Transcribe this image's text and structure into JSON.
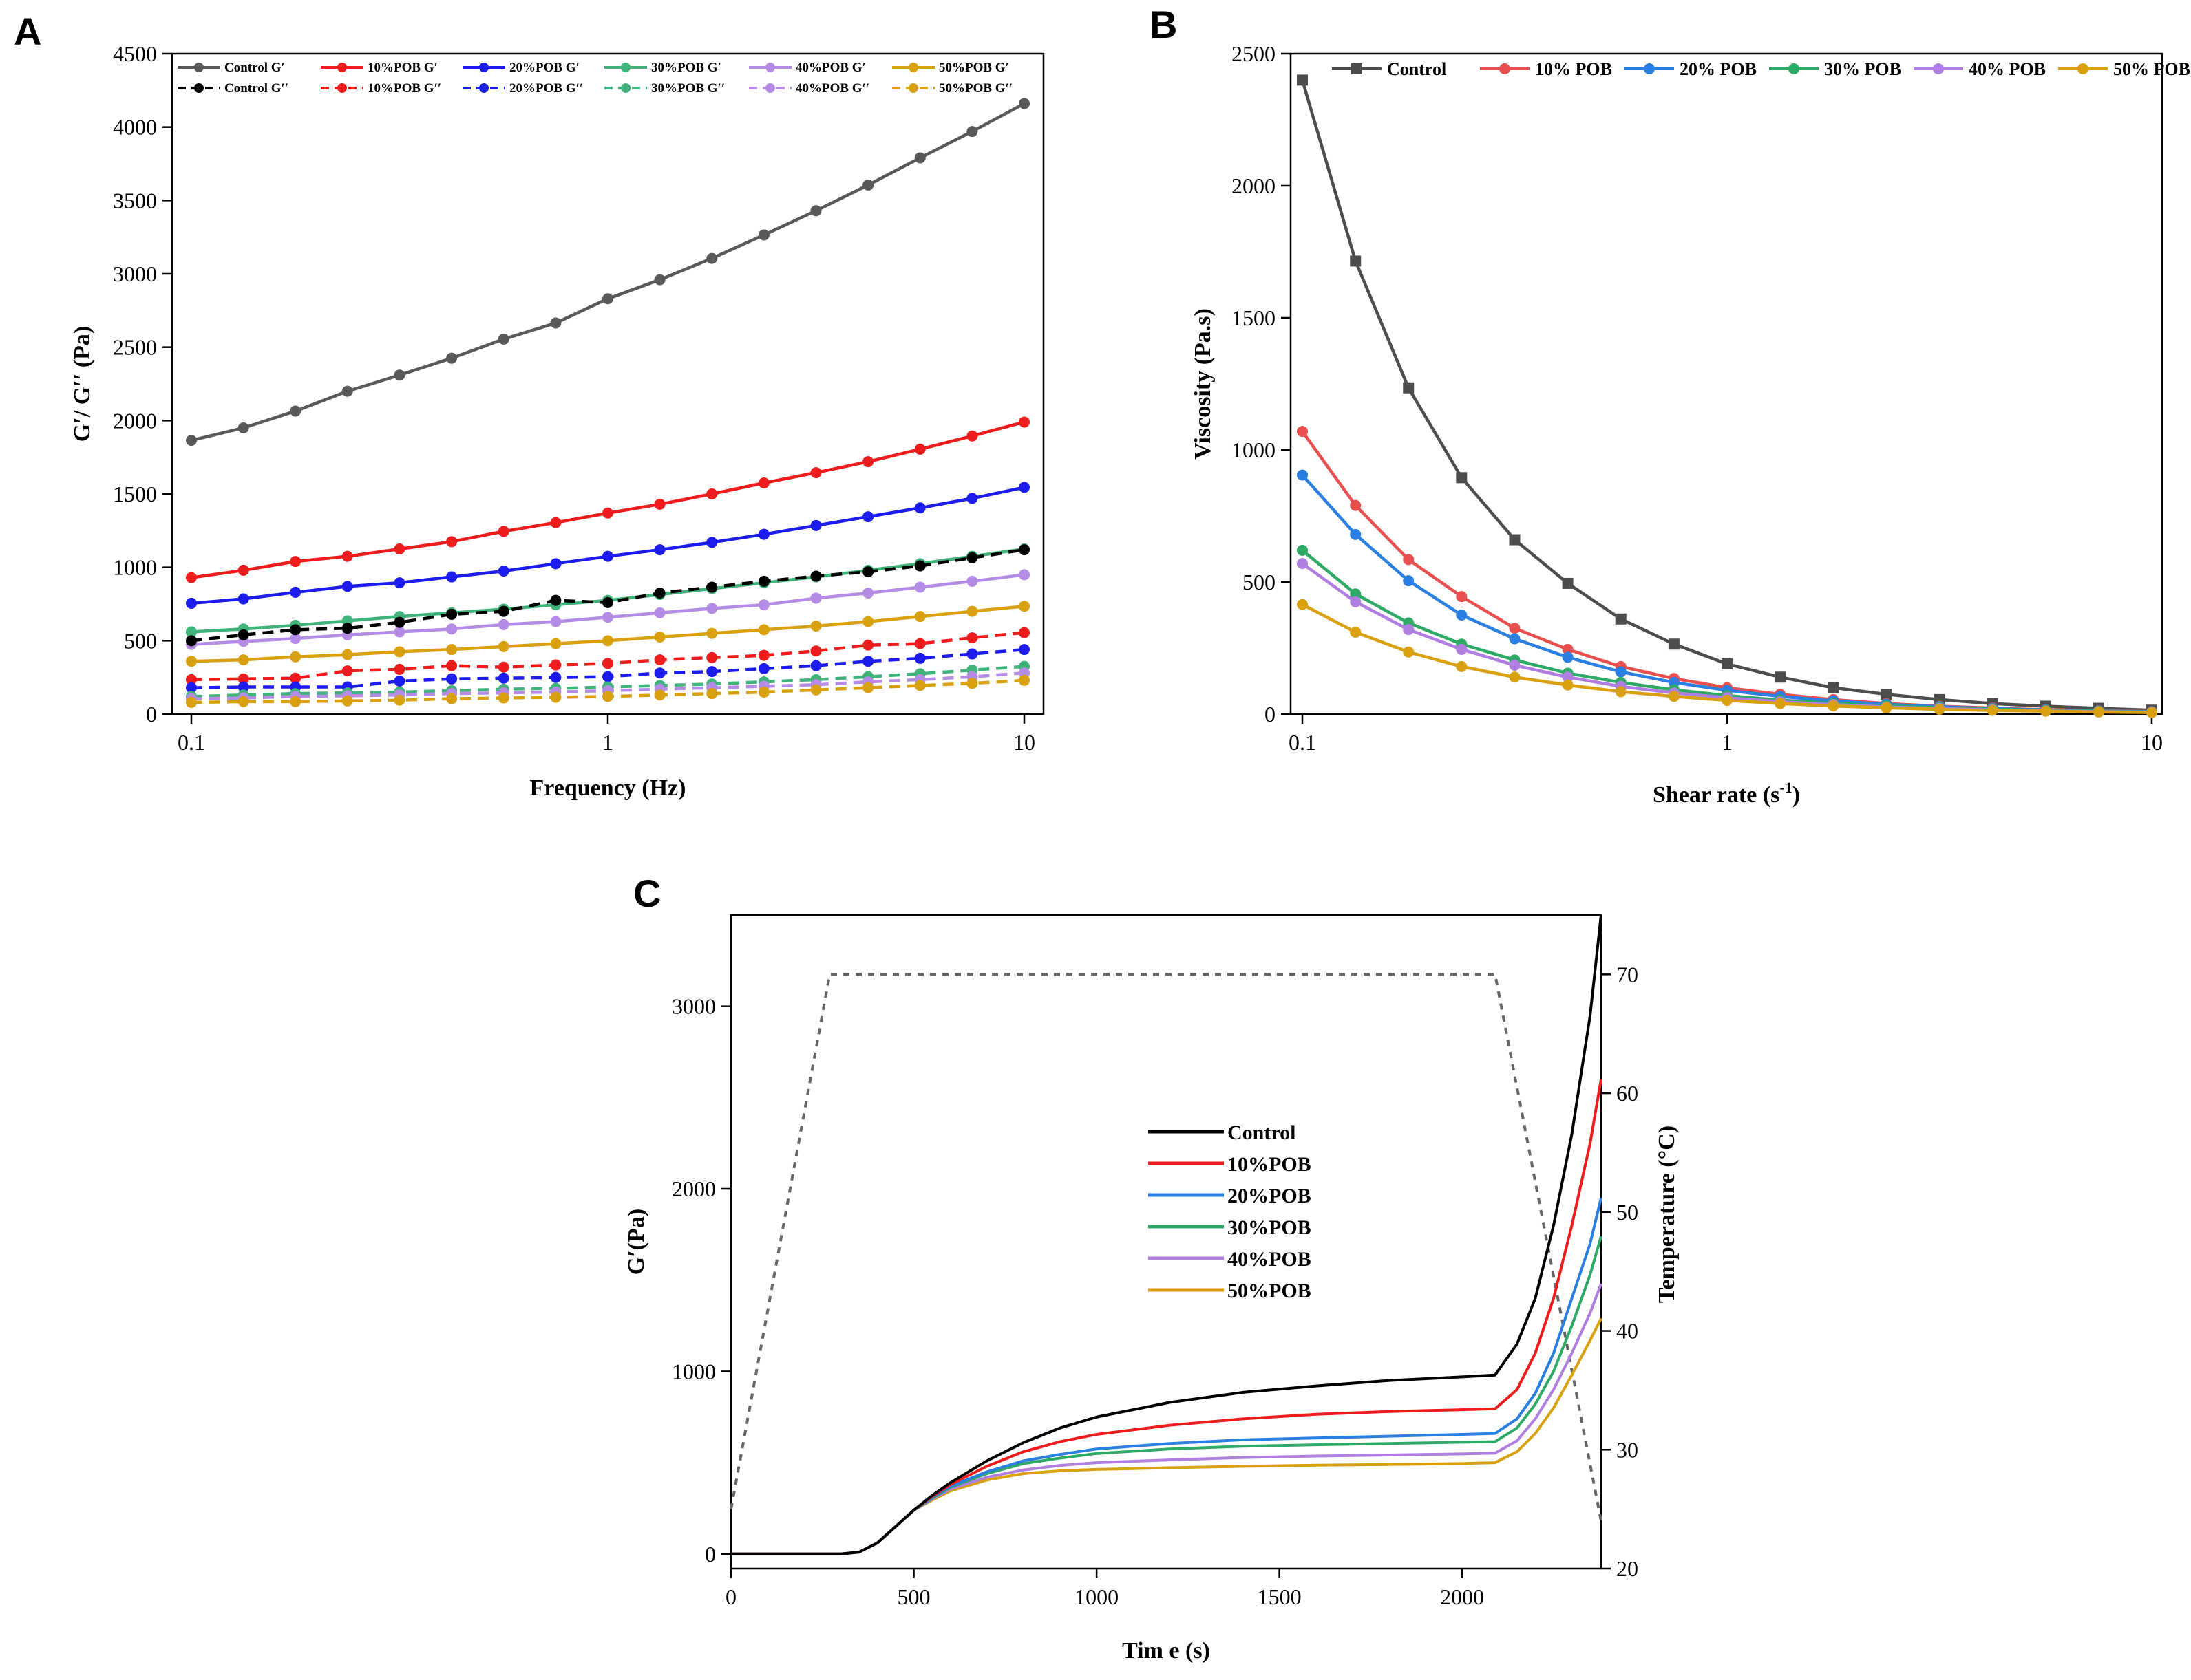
{
  "chart_data": [
    {
      "panel": "A",
      "type": "line",
      "xscale": "log",
      "xlabel": "Frequency (Hz)",
      "ylabel": "G′/ G′′ (Pa)",
      "xlim": [
        0.1,
        10
      ],
      "ylim": [
        0,
        4500
      ],
      "xticks": [
        {
          "value": 0.1,
          "label": "0.1"
        },
        {
          "value": 1,
          "label": "1"
        },
        {
          "value": 10,
          "label": "10"
        }
      ],
      "yticks": [
        {
          "value": 0,
          "label": "0"
        },
        {
          "value": 500,
          "label": "500"
        },
        {
          "value": 1000,
          "label": "1000"
        },
        {
          "value": 1500,
          "label": "1500"
        },
        {
          "value": 2000,
          "label": "2000"
        },
        {
          "value": 2500,
          "label": "2500"
        },
        {
          "value": 3000,
          "label": "3000"
        },
        {
          "value": 3500,
          "label": "3500"
        },
        {
          "value": 4000,
          "label": "4000"
        },
        {
          "value": 4500,
          "label": "4500"
        }
      ],
      "x": [
        0.1,
        0.1334,
        0.1778,
        0.2371,
        0.3162,
        0.4217,
        0.5623,
        0.7499,
        1.0,
        1.3335,
        1.7783,
        2.3714,
        3.1623,
        4.217,
        5.6234,
        7.4989,
        10.0
      ],
      "legend": "top",
      "series": [
        {
          "name": "Control G′",
          "color": "#595959",
          "dash": false,
          "values": [
            1865,
            1950,
            2065,
            2200,
            2310,
            2425,
            2555,
            2665,
            2830,
            2960,
            3105,
            3265,
            3430,
            3605,
            3790,
            3970,
            4160
          ]
        },
        {
          "name": "10%POB G′",
          "color": "#ee1c1c",
          "dash": false,
          "values": [
            930,
            980,
            1040,
            1075,
            1125,
            1175,
            1245,
            1305,
            1370,
            1430,
            1500,
            1575,
            1645,
            1720,
            1805,
            1895,
            1990
          ]
        },
        {
          "name": "20%POB G′",
          "color": "#1c1cee",
          "dash": false,
          "values": [
            755,
            785,
            830,
            870,
            895,
            935,
            975,
            1025,
            1075,
            1120,
            1170,
            1225,
            1285,
            1345,
            1405,
            1470,
            1545
          ]
        },
        {
          "name": "30%POB G′",
          "color": "#3fb37a",
          "dash": false,
          "values": [
            560,
            580,
            605,
            635,
            665,
            690,
            715,
            745,
            775,
            815,
            855,
            895,
            935,
            980,
            1025,
            1075,
            1125
          ]
        },
        {
          "name": "40%POB G′",
          "color": "#b48ce6",
          "dash": false,
          "values": [
            475,
            495,
            515,
            540,
            560,
            580,
            610,
            630,
            660,
            690,
            720,
            745,
            790,
            825,
            865,
            905,
            950
          ]
        },
        {
          "name": "50%POB G′",
          "color": "#d9a010",
          "dash": false,
          "values": [
            360,
            370,
            390,
            405,
            425,
            440,
            460,
            480,
            500,
            525,
            550,
            575,
            600,
            630,
            665,
            700,
            735
          ]
        },
        {
          "name": "Control G′′",
          "color": "#000000",
          "dash": true,
          "values": [
            500,
            540,
            575,
            585,
            625,
            680,
            700,
            775,
            760,
            825,
            865,
            905,
            940,
            970,
            1010,
            1065,
            1120
          ]
        },
        {
          "name": "10%POB G′′",
          "color": "#ee1c1c",
          "dash": true,
          "values": [
            235,
            240,
            245,
            295,
            305,
            330,
            320,
            335,
            345,
            370,
            385,
            400,
            430,
            470,
            480,
            520,
            555
          ]
        },
        {
          "name": "20%POB G′′",
          "color": "#1c1cee",
          "dash": true,
          "values": [
            180,
            185,
            185,
            185,
            225,
            240,
            245,
            250,
            255,
            280,
            290,
            310,
            330,
            360,
            380,
            410,
            440
          ]
        },
        {
          "name": "30%POB G′′",
          "color": "#3fb37a",
          "dash": true,
          "values": [
            120,
            130,
            140,
            145,
            150,
            160,
            170,
            175,
            185,
            195,
            205,
            220,
            235,
            255,
            275,
            300,
            325
          ]
        },
        {
          "name": "40%POB G′′",
          "color": "#b48ce6",
          "dash": true,
          "values": [
            105,
            110,
            120,
            125,
            130,
            140,
            145,
            150,
            160,
            170,
            180,
            190,
            200,
            220,
            235,
            255,
            280
          ]
        },
        {
          "name": "50%POB G′′",
          "color": "#d9a010",
          "dash": true,
          "values": [
            80,
            85,
            85,
            90,
            95,
            105,
            110,
            115,
            120,
            130,
            140,
            150,
            165,
            180,
            195,
            210,
            230
          ]
        }
      ]
    },
    {
      "panel": "B",
      "type": "line",
      "xscale": "log",
      "xlabel": "Shear rate (s",
      "xlabel_sup": "-1",
      "xlabel_end": ")",
      "ylabel": "Viscosity (Pa.s)",
      "xlim": [
        0.1,
        10
      ],
      "ylim": [
        0,
        2500
      ],
      "xticks": [
        {
          "value": 0.1,
          "label": "0.1"
        },
        {
          "value": 1,
          "label": "1"
        },
        {
          "value": 10,
          "label": "10"
        }
      ],
      "yticks": [
        {
          "value": 0,
          "label": "0"
        },
        {
          "value": 500,
          "label": "500"
        },
        {
          "value": 1000,
          "label": "1000"
        },
        {
          "value": 1500,
          "label": "1500"
        },
        {
          "value": 2000,
          "label": "2000"
        },
        {
          "value": 2500,
          "label": "2500"
        }
      ],
      "x": [
        0.1,
        0.1334,
        0.1778,
        0.2371,
        0.3162,
        0.4217,
        0.5623,
        0.7499,
        1.0,
        1.3335,
        1.7783,
        2.3714,
        3.1623,
        4.217,
        5.6234,
        7.4989,
        10.0
      ],
      "legend": "top",
      "series": [
        {
          "name": "Control",
          "color": "#4d4d4d",
          "marker": "square",
          "values": [
            2400,
            1715,
            1235,
            895,
            660,
            495,
            360,
            265,
            190,
            140,
            100,
            75,
            55,
            40,
            30,
            22,
            15
          ]
        },
        {
          "name": "10% POB",
          "color": "#e85050",
          "marker": "circle",
          "values": [
            1070,
            790,
            585,
            445,
            325,
            245,
            180,
            135,
            100,
            75,
            55,
            40,
            30,
            23,
            17,
            13,
            10
          ]
        },
        {
          "name": "20% POB",
          "color": "#2b7fe0",
          "marker": "circle",
          "values": [
            905,
            680,
            505,
            375,
            285,
            215,
            160,
            120,
            90,
            67,
            50,
            37,
            28,
            21,
            16,
            12,
            9
          ]
        },
        {
          "name": "30% POB",
          "color": "#2eaa66",
          "marker": "circle",
          "values": [
            620,
            455,
            345,
            265,
            205,
            155,
            120,
            92,
            70,
            53,
            41,
            31,
            24,
            18,
            14,
            11,
            8
          ]
        },
        {
          "name": "40% POB",
          "color": "#b07ee0",
          "marker": "circle",
          "values": [
            570,
            425,
            320,
            245,
            185,
            140,
            105,
            80,
            62,
            47,
            36,
            27,
            21,
            16,
            12,
            9,
            7
          ]
        },
        {
          "name": "50% POB",
          "color": "#d9a010",
          "marker": "circle",
          "values": [
            415,
            310,
            235,
            180,
            140,
            110,
            85,
            67,
            52,
            40,
            31,
            24,
            18,
            14,
            11,
            8,
            6
          ]
        }
      ]
    },
    {
      "panel": "C",
      "type": "line",
      "xscale": "linear",
      "xlabel": "Tim e (s)",
      "ylabel": "G′(Pa)",
      "y2label": "Temperature (°C)",
      "xlim": [
        0,
        2380
      ],
      "ylim": [
        -80,
        3500
      ],
      "y2lim": [
        20,
        75
      ],
      "xticks": [
        {
          "value": 0,
          "label": "0"
        },
        {
          "value": 500,
          "label": "500"
        },
        {
          "value": 1000,
          "label": "1000"
        },
        {
          "value": 1500,
          "label": "1500"
        },
        {
          "value": 2000,
          "label": "2000"
        }
      ],
      "yticks": [
        {
          "value": 0,
          "label": "0"
        },
        {
          "value": 1000,
          "label": "1000"
        },
        {
          "value": 2000,
          "label": "2000"
        },
        {
          "value": 3000,
          "label": "3000"
        }
      ],
      "y2ticks": [
        {
          "value": 20,
          "label": "20"
        },
        {
          "value": 30,
          "label": "30"
        },
        {
          "value": 40,
          "label": "40"
        },
        {
          "value": 50,
          "label": "50"
        },
        {
          "value": 60,
          "label": "60"
        },
        {
          "value": 70,
          "label": "70"
        }
      ],
      "legend": "center",
      "x": [
        0,
        300,
        350,
        400,
        450,
        500,
        550,
        600,
        700,
        800,
        900,
        1000,
        1200,
        1400,
        1600,
        1800,
        2000,
        2090,
        2150,
        2200,
        2250,
        2300,
        2350,
        2380
      ],
      "series": [
        {
          "name": "Control",
          "color": "#000000",
          "values": [
            0,
            0,
            10,
            60,
            150,
            240,
            320,
            390,
            510,
            610,
            690,
            750,
            830,
            885,
            920,
            950,
            970,
            980,
            1150,
            1400,
            1800,
            2300,
            2950,
            3500
          ]
        },
        {
          "name": "10%POB",
          "color": "#ee1c1c",
          "values": [
            0,
            0,
            10,
            60,
            150,
            240,
            315,
            380,
            480,
            560,
            615,
            655,
            705,
            740,
            765,
            780,
            790,
            795,
            900,
            1100,
            1400,
            1800,
            2250,
            2600
          ]
        },
        {
          "name": "20%POB",
          "color": "#2b7fe0",
          "values": [
            0,
            0,
            10,
            60,
            150,
            240,
            310,
            370,
            450,
            510,
            545,
            575,
            605,
            625,
            635,
            645,
            655,
            660,
            740,
            880,
            1100,
            1400,
            1700,
            1950
          ]
        },
        {
          "name": "30%POB",
          "color": "#2eaa66",
          "values": [
            0,
            0,
            10,
            60,
            150,
            240,
            305,
            365,
            440,
            495,
            525,
            550,
            575,
            590,
            598,
            605,
            612,
            615,
            690,
            820,
            1000,
            1250,
            1530,
            1740
          ]
        },
        {
          "name": "40%POB",
          "color": "#b07ee0",
          "values": [
            0,
            0,
            10,
            60,
            150,
            240,
            300,
            355,
            420,
            460,
            485,
            500,
            515,
            528,
            536,
            542,
            548,
            552,
            620,
            740,
            900,
            1100,
            1320,
            1480
          ]
        },
        {
          "name": "50%POB",
          "color": "#d9a010",
          "values": [
            0,
            0,
            10,
            60,
            150,
            240,
            295,
            345,
            405,
            440,
            455,
            463,
            472,
            480,
            486,
            490,
            495,
            500,
            560,
            660,
            800,
            980,
            1170,
            1290
          ]
        }
      ],
      "temperature": {
        "name": "Temperature",
        "color": "#666666",
        "dash": true,
        "x": [
          0,
          270,
          2090,
          2380
        ],
        "values": [
          25,
          70,
          70,
          24
        ]
      }
    }
  ]
}
